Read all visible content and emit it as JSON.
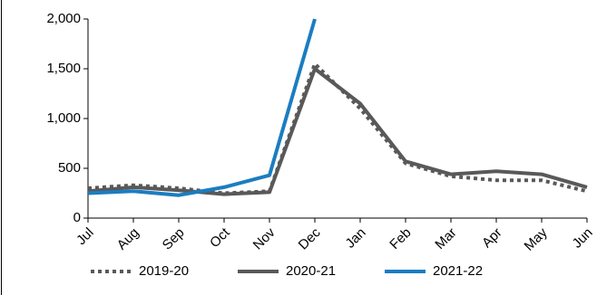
{
  "chart_data": {
    "type": "line",
    "categories": [
      "Jul",
      "Aug",
      "Sep",
      "Oct",
      "Nov",
      "Dec",
      "Jan",
      "Feb",
      "Mar",
      "Apr",
      "May",
      "Jun"
    ],
    "series": [
      {
        "name": "2019-20",
        "color": "#595959",
        "dash": "dotted",
        "values": [
          300,
          330,
          300,
          250,
          270,
          1550,
          1100,
          550,
          420,
          380,
          380,
          270
        ]
      },
      {
        "name": "2020-21",
        "color": "#595959",
        "dash": "solid",
        "values": [
          270,
          310,
          280,
          240,
          260,
          1500,
          1150,
          570,
          440,
          470,
          440,
          310
        ]
      },
      {
        "name": "2021-22",
        "color": "#1b7dc1",
        "dash": "solid",
        "values": [
          250,
          270,
          230,
          310,
          430,
          2000,
          null,
          null,
          null,
          null,
          null,
          null
        ]
      }
    ],
    "ylim": [
      0,
      2000
    ],
    "yticks": [
      {
        "value": 0,
        "label": "0"
      },
      {
        "value": 500,
        "label": "500"
      },
      {
        "value": 1000,
        "label": "1,000"
      },
      {
        "value": 1500,
        "label": "1,500"
      },
      {
        "value": 2000,
        "label": "2,000"
      }
    ],
    "legend": "bottom"
  }
}
